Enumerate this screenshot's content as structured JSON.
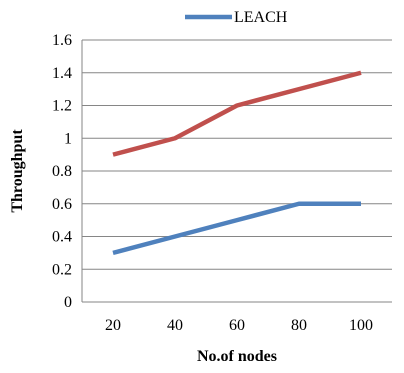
{
  "chart_data": {
    "type": "line",
    "x": [
      "20",
      "40",
      "60",
      "80",
      "100"
    ],
    "series": [
      {
        "name": "LEACH",
        "values": [
          0.3,
          0.4,
          0.5,
          0.6,
          0.6
        ],
        "color": "#4F81BD"
      },
      {
        "values": [
          0.9,
          1.0,
          1.2,
          1.3,
          1.4
        ],
        "color": "#C0504D"
      }
    ],
    "xlabel": "No.of nodes",
    "ylabel": "Throughput",
    "ylim": [
      0,
      1.6
    ],
    "yticks": [
      "0",
      "0.2",
      "0.4",
      "0.6",
      "0.8",
      "1",
      "1.2",
      "1.4",
      "1.6"
    ],
    "grid": true,
    "legend_position": "top"
  }
}
